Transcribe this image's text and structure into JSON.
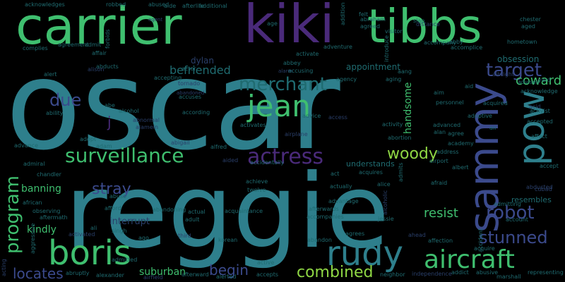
{
  "palette": {
    "background": "#000000",
    "teal": "#2e7f8c",
    "green": "#3fbf6f",
    "lime": "#8fd744",
    "purple": "#4a2a7a",
    "indigo": "#3b4a8c",
    "dim_blue": "#2a3f6a",
    "dim_teal": "#1f6b70",
    "yellow": "#c8dc3a"
  },
  "words": [
    {
      "text": "oscar",
      "color": "teal"
    },
    {
      "text": "reggie",
      "color": "teal"
    },
    {
      "text": "carrier",
      "color": "green"
    },
    {
      "text": "kiki",
      "color": "purple"
    },
    {
      "text": "tibbs",
      "color": "green"
    },
    {
      "text": "sammy",
      "color": "indigo"
    },
    {
      "text": "pow",
      "color": "teal"
    },
    {
      "text": "boris",
      "color": "green"
    },
    {
      "text": "rudy",
      "color": "teal"
    },
    {
      "text": "aircraft",
      "color": "green"
    },
    {
      "text": "surveillance",
      "color": "green"
    },
    {
      "text": "jean",
      "color": "green"
    },
    {
      "text": "actress",
      "color": "purple"
    },
    {
      "text": "target",
      "color": "indigo"
    },
    {
      "text": "merchant",
      "color": "dim_teal"
    },
    {
      "text": "program",
      "color": "green"
    },
    {
      "text": "robot",
      "color": "indigo"
    },
    {
      "text": "stunned",
      "color": "indigo"
    },
    {
      "text": "combined",
      "color": "lime"
    },
    {
      "text": "woody",
      "color": "lime"
    },
    {
      "text": "locates",
      "color": "indigo"
    },
    {
      "text": "begin",
      "color": "indigo"
    },
    {
      "text": "coward",
      "color": "green"
    },
    {
      "text": "due",
      "color": "indigo"
    },
    {
      "text": "befriended",
      "color": "dim_teal"
    },
    {
      "text": "stray",
      "color": "indigo"
    },
    {
      "text": "banning",
      "color": "green"
    },
    {
      "text": "resist",
      "color": "green"
    },
    {
      "text": "handsome",
      "color": "green"
    },
    {
      "text": "kindly",
      "color": "green"
    },
    {
      "text": "interrupt",
      "color": "dim_blue"
    },
    {
      "text": "suburban",
      "color": "green"
    },
    {
      "text": "dylan",
      "color": "dim_blue"
    },
    {
      "text": "j",
      "color": "purple"
    },
    {
      "text": "appointment",
      "color": "dim_teal"
    },
    {
      "text": "obsession",
      "color": "dim_teal"
    },
    {
      "text": "resembles",
      "color": "dim_teal"
    },
    {
      "text": "understands",
      "color": "dim_teal"
    },
    {
      "text": "acknowledges",
      "color": "dim_teal"
    },
    {
      "text": "robbed",
      "color": "dim_teal"
    },
    {
      "text": "abused",
      "color": "dim_teal"
    },
    {
      "text": "aide",
      "color": "dim_teal"
    },
    {
      "text": "afterlife",
      "color": "dim_teal"
    },
    {
      "text": "additional",
      "color": "dim_teal"
    },
    {
      "text": "agent",
      "color": "dim_blue"
    },
    {
      "text": "age",
      "color": "dim_teal"
    },
    {
      "text": "addition",
      "color": "dim_teal"
    },
    {
      "text": "felt",
      "color": "dim_teal"
    },
    {
      "text": "abraham",
      "color": "dim_teal"
    },
    {
      "text": "agreed",
      "color": "dim_teal"
    },
    {
      "text": "slap",
      "color": "dim_teal"
    },
    {
      "text": "distance",
      "color": "dim_blue"
    },
    {
      "text": "chester",
      "color": "dim_teal"
    },
    {
      "text": "aged",
      "color": "dim_teal"
    },
    {
      "text": "visitor",
      "color": "dim_teal"
    },
    {
      "text": "adventure",
      "color": "dim_teal"
    },
    {
      "text": "introduce",
      "color": "dim_teal"
    },
    {
      "text": "accompany",
      "color": "dim_teal"
    },
    {
      "text": "abby",
      "color": "dim_teal"
    },
    {
      "text": "accomplice",
      "color": "dim_teal"
    },
    {
      "text": "hometown",
      "color": "dim_teal"
    },
    {
      "text": "complies",
      "color": "dim_teal"
    },
    {
      "text": "agreement",
      "color": "dim_teal"
    },
    {
      "text": "admit",
      "color": "dim_teal"
    },
    {
      "text": "forbids",
      "color": "dim_teal"
    },
    {
      "text": "affair",
      "color": "dim_teal"
    },
    {
      "text": "abducts",
      "color": "dim_teal"
    },
    {
      "text": "alison",
      "color": "dim_blue"
    },
    {
      "text": "actor",
      "color": "dim_teal"
    },
    {
      "text": "alarm",
      "color": "dim_blue"
    },
    {
      "text": "accusing",
      "color": "dim_teal"
    },
    {
      "text": "abbey",
      "color": "dim_teal"
    },
    {
      "text": "activate",
      "color": "dim_teal"
    },
    {
      "text": "albright",
      "color": "dim_blue"
    },
    {
      "text": "acknowledge",
      "color": "dim_teal"
    },
    {
      "text": "advises",
      "color": "dim_teal"
    },
    {
      "text": "yard",
      "color": "dim_teal"
    },
    {
      "text": "accepting",
      "color": "dim_teal"
    },
    {
      "text": "abandoned",
      "color": "dim_blue"
    },
    {
      "text": "agency",
      "color": "dim_teal"
    },
    {
      "text": "aging",
      "color": "dim_teal"
    },
    {
      "text": "aang",
      "color": "dim_teal"
    },
    {
      "text": "aim",
      "color": "dim_teal"
    },
    {
      "text": "aid",
      "color": "dim_teal"
    },
    {
      "text": "alert",
      "color": "dim_teal"
    },
    {
      "text": "tornado",
      "color": "dim_blue"
    },
    {
      "text": "accuses",
      "color": "dim_teal"
    },
    {
      "text": "personnel",
      "color": "dim_teal"
    },
    {
      "text": "acquired",
      "color": "dim_teal"
    },
    {
      "text": "acid",
      "color": "dim_blue"
    },
    {
      "text": "activist",
      "color": "dim_teal"
    },
    {
      "text": "abe",
      "color": "dim_teal"
    },
    {
      "text": "ability",
      "color": "dim_teal"
    },
    {
      "text": "alcohol",
      "color": "dim_teal"
    },
    {
      "text": "according",
      "color": "dim_teal"
    },
    {
      "text": "access",
      "color": "dim_blue"
    },
    {
      "text": "advice",
      "color": "dim_teal"
    },
    {
      "text": "adoptive",
      "color": "dim_teal"
    },
    {
      "text": "air",
      "color": "dim_teal"
    },
    {
      "text": "accepted",
      "color": "dim_teal"
    },
    {
      "text": "affect",
      "color": "dim_teal"
    },
    {
      "text": "abnormal",
      "color": "dim_blue"
    },
    {
      "text": "alamein",
      "color": "dim_blue"
    },
    {
      "text": "activates",
      "color": "dim_teal"
    },
    {
      "text": "activity",
      "color": "dim_teal"
    },
    {
      "text": "advanced",
      "color": "dim_teal"
    },
    {
      "text": "alan",
      "color": "dim_teal"
    },
    {
      "text": "agree",
      "color": "dim_teal"
    },
    {
      "text": "advance",
      "color": "dim_teal"
    },
    {
      "text": "adopt",
      "color": "dim_teal"
    },
    {
      "text": "adam",
      "color": "dim_teal"
    },
    {
      "text": "abigail",
      "color": "dim_blue"
    },
    {
      "text": "airplane",
      "color": "dim_blue"
    },
    {
      "text": "abortion",
      "color": "dim_teal"
    },
    {
      "text": "academy",
      "color": "dim_teal"
    },
    {
      "text": "alfred",
      "color": "dim_teal"
    },
    {
      "text": "address",
      "color": "dim_teal"
    },
    {
      "text": "admiral",
      "color": "dim_teal"
    },
    {
      "text": "aided",
      "color": "dim_blue"
    },
    {
      "text": "accidentally",
      "color": "dim_teal"
    },
    {
      "text": "airport",
      "color": "dim_teal"
    },
    {
      "text": "albert",
      "color": "dim_teal"
    },
    {
      "text": "accept",
      "color": "dim_teal"
    },
    {
      "text": "chandler",
      "color": "dim_teal"
    },
    {
      "text": "act",
      "color": "dim_teal"
    },
    {
      "text": "acquires",
      "color": "dim_teal"
    },
    {
      "text": "admits",
      "color": "dim_teal"
    },
    {
      "text": "afraid",
      "color": "dim_teal"
    },
    {
      "text": "achieve",
      "color": "dim_teal"
    },
    {
      "text": "twelve",
      "color": "dim_teal"
    },
    {
      "text": "actually",
      "color": "dim_teal"
    },
    {
      "text": "alice",
      "color": "dim_teal"
    },
    {
      "text": "abducted",
      "color": "dim_blue"
    },
    {
      "text": "cubad",
      "color": "dim_blue"
    },
    {
      "text": "african",
      "color": "dim_teal"
    },
    {
      "text": "abuse",
      "color": "dim_teal"
    },
    {
      "text": "alcoholic",
      "color": "dim_blue"
    },
    {
      "text": "admitting",
      "color": "dim_teal"
    },
    {
      "text": "afford",
      "color": "dim_teal"
    },
    {
      "text": "abandoning",
      "color": "dim_teal"
    },
    {
      "text": "advantage",
      "color": "dim_teal"
    },
    {
      "text": "afterwards",
      "color": "dim_teal"
    },
    {
      "text": "observing",
      "color": "dim_teal"
    },
    {
      "text": "aftermath",
      "color": "dim_teal"
    },
    {
      "text": "actual",
      "color": "dim_teal"
    },
    {
      "text": "adult",
      "color": "dim_teal"
    },
    {
      "text": "accompanies",
      "color": "dim_teal"
    },
    {
      "text": "jessie",
      "color": "dim_teal"
    },
    {
      "text": "account",
      "color": "dim_teal"
    },
    {
      "text": "acquaintance",
      "color": "dim_teal"
    },
    {
      "text": "aggressive",
      "color": "dim_teal"
    },
    {
      "text": "ali",
      "color": "dim_teal"
    },
    {
      "text": "singh",
      "color": "dim_teal"
    },
    {
      "text": "activated",
      "color": "dim_blue"
    },
    {
      "text": "third",
      "color": "dim_blue"
    },
    {
      "text": "agrees",
      "color": "dim_teal"
    },
    {
      "text": "ahead",
      "color": "dim_blue"
    },
    {
      "text": "accident",
      "color": "dim_teal"
    },
    {
      "text": "affection",
      "color": "dim_teal"
    },
    {
      "text": "ago",
      "color": "dim_teal"
    },
    {
      "text": "korean",
      "color": "dim_teal"
    },
    {
      "text": "abandon",
      "color": "dim_teal"
    },
    {
      "text": "acquire",
      "color": "dim_teal"
    },
    {
      "text": "admitted",
      "color": "dim_teal"
    },
    {
      "text": "active",
      "color": "dim_teal"
    },
    {
      "text": "acting",
      "color": "dim_blue"
    },
    {
      "text": "abruptly",
      "color": "dim_teal"
    },
    {
      "text": "alexander",
      "color": "dim_teal"
    },
    {
      "text": "airfield",
      "color": "dim_blue"
    },
    {
      "text": "afterward",
      "color": "dim_teal"
    },
    {
      "text": "alerted",
      "color": "dim_teal"
    },
    {
      "text": "accepts",
      "color": "dim_teal"
    },
    {
      "text": "neighbor",
      "color": "dim_teal"
    },
    {
      "text": "independence",
      "color": "dim_blue"
    },
    {
      "text": "addict",
      "color": "dim_teal"
    },
    {
      "text": "abusive",
      "color": "dim_teal"
    },
    {
      "text": "marshall",
      "color": "dim_teal"
    },
    {
      "text": "representing",
      "color": "dim_teal"
    }
  ]
}
